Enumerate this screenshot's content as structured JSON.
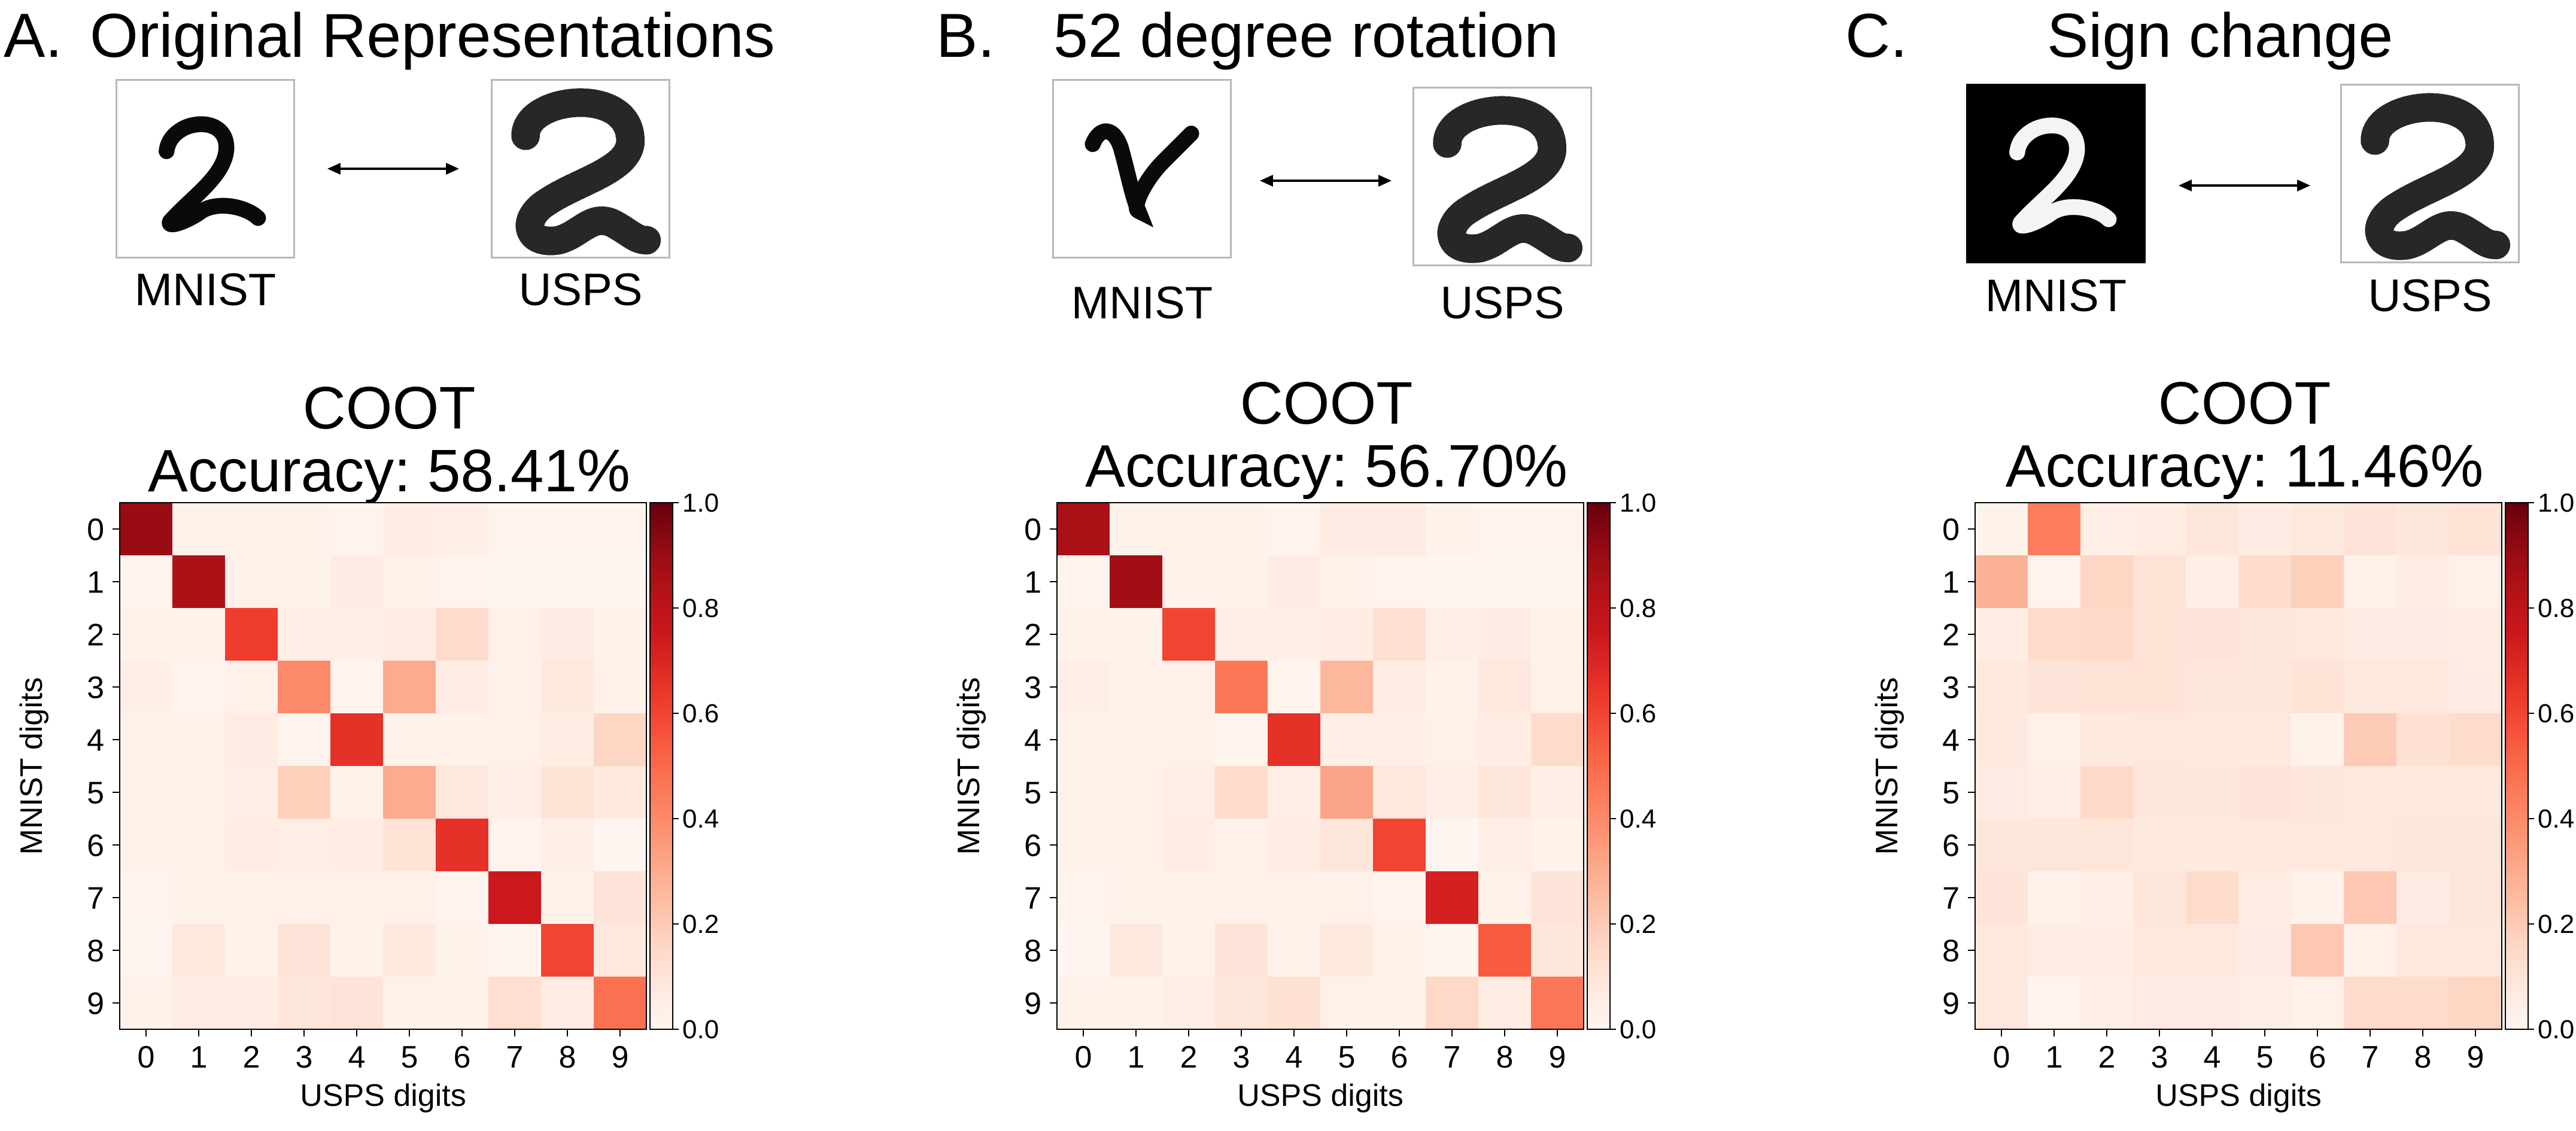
{
  "panels": [
    {
      "letter": "A.",
      "heading": "Original Representations",
      "left_label": "MNIST",
      "right_label": "USPS",
      "left_style": "normal",
      "chart_title": "COOT",
      "chart_subtitle": "Accuracy: 58.41%"
    },
    {
      "letter": "B.",
      "heading": "52 degree rotation",
      "left_label": "MNIST",
      "right_label": "USPS",
      "left_style": "rotated",
      "chart_title": "COOT",
      "chart_subtitle": "Accuracy: 56.70%"
    },
    {
      "letter": "C.",
      "heading": "Sign change",
      "left_label": "MNIST",
      "right_label": "USPS",
      "left_style": "inverted",
      "chart_title": "COOT",
      "chart_subtitle": "Accuracy: 11.46%"
    }
  ],
  "colors": {
    "low": "#fff5f0",
    "high": "#67000d"
  },
  "chart_data": [
    {
      "type": "heatmap",
      "title": "COOT",
      "subtitle": "Accuracy: 58.41%",
      "xlabel": "USPS digits",
      "ylabel": "MNIST digits",
      "x_categories": [
        "0",
        "1",
        "2",
        "3",
        "4",
        "5",
        "6",
        "7",
        "8",
        "9"
      ],
      "y_categories": [
        "0",
        "1",
        "2",
        "3",
        "4",
        "5",
        "6",
        "7",
        "8",
        "9"
      ],
      "colorbar_ticks": [
        "0.0",
        "0.2",
        "0.4",
        "0.6",
        "0.8",
        "1.0"
      ],
      "vlim": [
        0,
        1
      ],
      "colormap": "Reds",
      "values": [
        [
          0.9,
          0.02,
          0.03,
          0.02,
          0.01,
          0.05,
          0.04,
          0.01,
          0.01,
          0.01
        ],
        [
          0.01,
          0.85,
          0.03,
          0.02,
          0.06,
          0.02,
          0.01,
          0.0,
          0.0,
          0.0
        ],
        [
          0.02,
          0.02,
          0.62,
          0.04,
          0.04,
          0.05,
          0.14,
          0.03,
          0.06,
          0.02
        ],
        [
          0.04,
          0.01,
          0.03,
          0.4,
          0.01,
          0.3,
          0.05,
          0.03,
          0.07,
          0.03
        ],
        [
          0.02,
          0.03,
          0.06,
          0.01,
          0.66,
          0.02,
          0.02,
          0.03,
          0.05,
          0.16
        ],
        [
          0.02,
          0.03,
          0.04,
          0.18,
          0.02,
          0.3,
          0.08,
          0.04,
          0.11,
          0.07
        ],
        [
          0.02,
          0.03,
          0.05,
          0.04,
          0.05,
          0.11,
          0.66,
          0.01,
          0.04,
          0.0
        ],
        [
          0.01,
          0.02,
          0.02,
          0.03,
          0.03,
          0.03,
          0.01,
          0.75,
          0.02,
          0.1
        ],
        [
          0.0,
          0.07,
          0.02,
          0.1,
          0.02,
          0.07,
          0.02,
          0.0,
          0.6,
          0.07
        ],
        [
          0.02,
          0.05,
          0.05,
          0.09,
          0.1,
          0.03,
          0.02,
          0.13,
          0.05,
          0.48
        ]
      ]
    },
    {
      "type": "heatmap",
      "title": "COOT",
      "subtitle": "Accuracy: 56.70%",
      "xlabel": "USPS digits",
      "ylabel": "MNIST digits",
      "x_categories": [
        "0",
        "1",
        "2",
        "3",
        "4",
        "5",
        "6",
        "7",
        "8",
        "9"
      ],
      "y_categories": [
        "0",
        "1",
        "2",
        "3",
        "4",
        "5",
        "6",
        "7",
        "8",
        "9"
      ],
      "colorbar_ticks": [
        "0.0",
        "0.2",
        "0.4",
        "0.6",
        "0.8",
        "1.0"
      ],
      "vlim": [
        0,
        1
      ],
      "colormap": "Reds",
      "values": [
        [
          0.86,
          0.02,
          0.03,
          0.02,
          0.01,
          0.06,
          0.06,
          0.02,
          0.01,
          0.01
        ],
        [
          0.01,
          0.88,
          0.02,
          0.02,
          0.06,
          0.02,
          0.01,
          0.0,
          0.0,
          0.0
        ],
        [
          0.02,
          0.02,
          0.6,
          0.04,
          0.04,
          0.05,
          0.13,
          0.04,
          0.06,
          0.02
        ],
        [
          0.04,
          0.02,
          0.03,
          0.46,
          0.01,
          0.26,
          0.05,
          0.02,
          0.08,
          0.03
        ],
        [
          0.02,
          0.03,
          0.03,
          0.01,
          0.66,
          0.04,
          0.04,
          0.03,
          0.05,
          0.14
        ],
        [
          0.02,
          0.03,
          0.04,
          0.14,
          0.04,
          0.32,
          0.08,
          0.04,
          0.09,
          0.04
        ],
        [
          0.02,
          0.03,
          0.05,
          0.02,
          0.05,
          0.09,
          0.6,
          0.0,
          0.04,
          0.02
        ],
        [
          0.01,
          0.02,
          0.02,
          0.03,
          0.03,
          0.03,
          0.01,
          0.72,
          0.02,
          0.1
        ],
        [
          0.0,
          0.07,
          0.02,
          0.1,
          0.02,
          0.07,
          0.02,
          0.0,
          0.54,
          0.09
        ],
        [
          0.02,
          0.02,
          0.04,
          0.09,
          0.12,
          0.03,
          0.02,
          0.15,
          0.05,
          0.46
        ]
      ]
    },
    {
      "type": "heatmap",
      "title": "COOT",
      "subtitle": "Accuracy: 11.46%",
      "xlabel": "USPS digits",
      "ylabel": "MNIST digits",
      "x_categories": [
        "0",
        "1",
        "2",
        "3",
        "4",
        "5",
        "6",
        "7",
        "8",
        "9"
      ],
      "y_categories": [
        "0",
        "1",
        "2",
        "3",
        "4",
        "5",
        "6",
        "7",
        "8",
        "9"
      ],
      "colorbar_ticks": [
        "0.0",
        "0.2",
        "0.4",
        "0.6",
        "0.8",
        "1.0"
      ],
      "vlim": [
        0,
        1
      ],
      "colormap": "Reds",
      "values": [
        [
          0.02,
          0.44,
          0.04,
          0.05,
          0.09,
          0.06,
          0.07,
          0.1,
          0.09,
          0.11
        ],
        [
          0.28,
          0.01,
          0.16,
          0.11,
          0.04,
          0.14,
          0.18,
          0.02,
          0.05,
          0.03
        ],
        [
          0.05,
          0.14,
          0.15,
          0.11,
          0.1,
          0.09,
          0.08,
          0.06,
          0.06,
          0.05
        ],
        [
          0.08,
          0.1,
          0.11,
          0.11,
          0.09,
          0.09,
          0.11,
          0.08,
          0.08,
          0.06
        ],
        [
          0.07,
          0.03,
          0.07,
          0.08,
          0.07,
          0.07,
          0.02,
          0.2,
          0.12,
          0.14
        ],
        [
          0.06,
          0.04,
          0.15,
          0.09,
          0.09,
          0.1,
          0.09,
          0.08,
          0.07,
          0.07
        ],
        [
          0.09,
          0.09,
          0.09,
          0.07,
          0.07,
          0.08,
          0.08,
          0.08,
          0.09,
          0.09
        ],
        [
          0.1,
          0.02,
          0.04,
          0.09,
          0.14,
          0.05,
          0.02,
          0.21,
          0.06,
          0.09
        ],
        [
          0.08,
          0.05,
          0.05,
          0.08,
          0.08,
          0.06,
          0.21,
          0.03,
          0.08,
          0.08
        ],
        [
          0.08,
          0.01,
          0.04,
          0.06,
          0.06,
          0.04,
          0.03,
          0.14,
          0.14,
          0.16
        ]
      ]
    }
  ]
}
